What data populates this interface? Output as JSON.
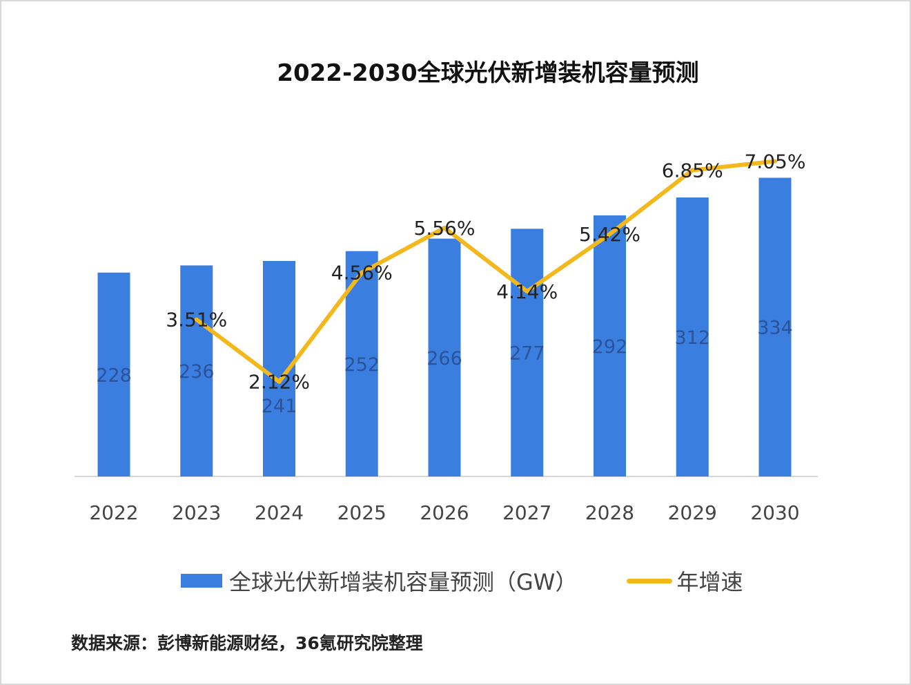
{
  "chart_data": {
    "type": "bar+line",
    "title": "2022-2030全球光伏新增装机容量预测",
    "categories": [
      "2022",
      "2023",
      "2024",
      "2025",
      "2026",
      "2027",
      "2028",
      "2029",
      "2030"
    ],
    "series": [
      {
        "name": "全球光伏新增装机容量预测（GW）",
        "type": "bar",
        "color": "#3a7ee0",
        "values": [
          228,
          236,
          241,
          252,
          266,
          277,
          292,
          312,
          334
        ],
        "labels": [
          "228",
          "236",
          "241",
          "252",
          "266",
          "277",
          "292",
          "312",
          "334"
        ]
      },
      {
        "name": "年增速",
        "type": "line",
        "color": "#f2b81c",
        "values": [
          null,
          3.51,
          2.12,
          4.56,
          5.56,
          4.14,
          5.42,
          6.85,
          7.05
        ],
        "labels": [
          "",
          "3.51%",
          "2.12%",
          "4.56%",
          "5.56%",
          "4.14%",
          "5.42%",
          "6.85%",
          "7.05%"
        ]
      }
    ],
    "ylim": [
      0,
      400
    ],
    "y2lim": [
      0,
      8
    ],
    "grid": false,
    "legend_placement": "bottom",
    "source": "数据来源：彭博新能源财经，36氪研究院整理"
  }
}
